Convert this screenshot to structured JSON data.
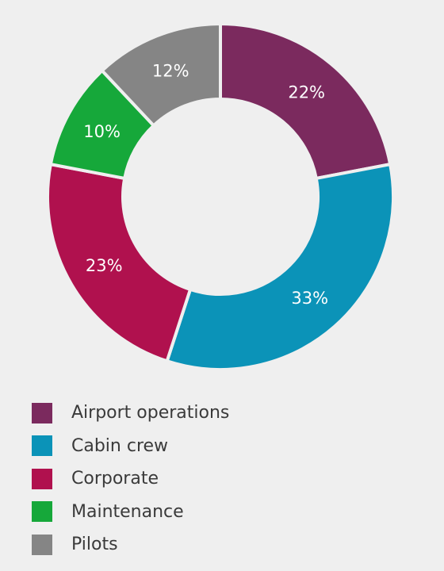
{
  "chart_data": {
    "type": "pie",
    "donut": true,
    "categories": [
      "Airport operations",
      "Cabin crew",
      "Corporate",
      "Maintenance",
      "Pilots"
    ],
    "values": [
      22,
      33,
      23,
      10,
      12
    ],
    "labels": [
      "22%",
      "33%",
      "23%",
      "10%",
      "12%"
    ],
    "colors": [
      "#7b2a5e",
      "#0b93b8",
      "#b0114e",
      "#16a83a",
      "#858585"
    ],
    "title": "",
    "legend_position": "bottom-left",
    "start_angle": "top",
    "direction": "clockwise"
  }
}
